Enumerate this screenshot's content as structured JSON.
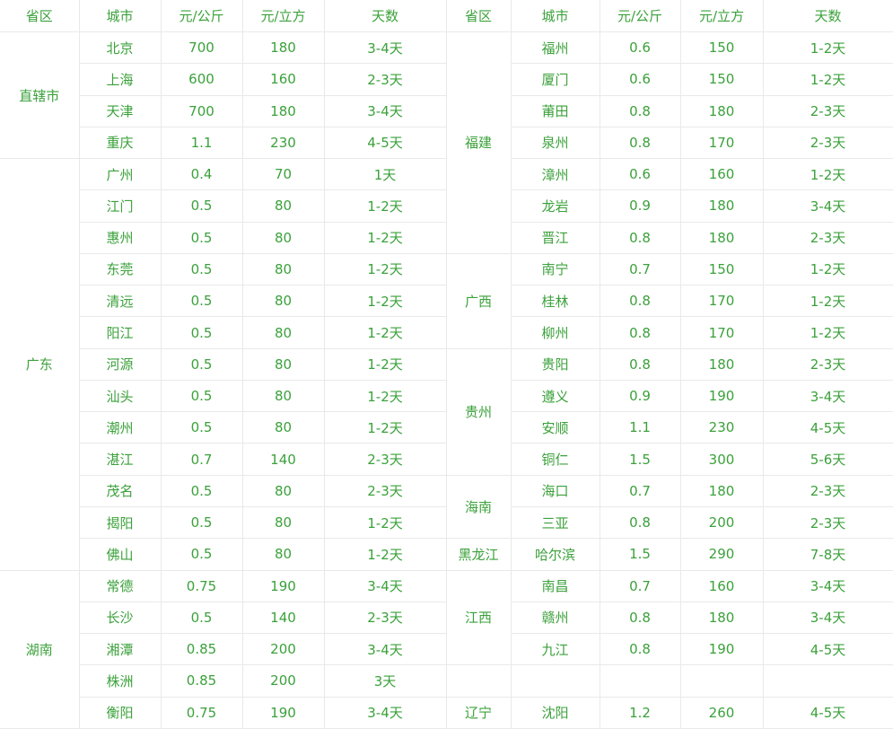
{
  "colors": {
    "text_green": "#3ba13b",
    "border": "#e9e9e9",
    "background": "#ffffff"
  },
  "chart_data": {
    "type": "table",
    "columns": [
      "省区",
      "城市",
      "元/公斤",
      "元/立方",
      "天数",
      "省区",
      "城市",
      "元/公斤",
      "元/立方",
      "天数"
    ],
    "left_groups": [
      {
        "province": "直辖市",
        "rows": [
          [
            "北京",
            "700",
            "180",
            "3-4天"
          ],
          [
            "上海",
            "600",
            "160",
            "2-3天"
          ],
          [
            "天津",
            "700",
            "180",
            "3-4天"
          ],
          [
            "重庆",
            "1.1",
            "230",
            "4-5天"
          ]
        ]
      },
      {
        "province": "广东",
        "rows": [
          [
            "广州",
            "0.4",
            "70",
            "1天"
          ],
          [
            "江门",
            "0.5",
            "80",
            "1-2天"
          ],
          [
            "惠州",
            "0.5",
            "80",
            "1-2天"
          ],
          [
            "东莞",
            "0.5",
            "80",
            "1-2天"
          ],
          [
            "清远",
            "0.5",
            "80",
            "1-2天"
          ],
          [
            "阳江",
            "0.5",
            "80",
            "1-2天"
          ],
          [
            "河源",
            "0.5",
            "80",
            "1-2天"
          ],
          [
            "汕头",
            "0.5",
            "80",
            "1-2天"
          ],
          [
            "潮州",
            "0.5",
            "80",
            "1-2天"
          ],
          [
            "湛江",
            "0.7",
            "140",
            "2-3天"
          ],
          [
            "茂名",
            "0.5",
            "80",
            "2-3天"
          ],
          [
            "揭阳",
            "0.5",
            "80",
            "1-2天"
          ],
          [
            "佛山",
            "0.5",
            "80",
            "1-2天"
          ]
        ]
      },
      {
        "province": "湖南",
        "rows": [
          [
            "常德",
            "0.75",
            "190",
            "3-4天"
          ],
          [
            "长沙",
            "0.5",
            "140",
            "2-3天"
          ],
          [
            "湘潭",
            "0.85",
            "200",
            "3-4天"
          ],
          [
            "株洲",
            "0.85",
            "200",
            "3天"
          ],
          [
            "衡阳",
            "0.75",
            "190",
            "3-4天"
          ]
        ]
      }
    ],
    "right_groups": [
      {
        "province": "福建",
        "rows": [
          [
            "福州",
            "0.6",
            "150",
            "1-2天"
          ],
          [
            "厦门",
            "0.6",
            "150",
            "1-2天"
          ],
          [
            "莆田",
            "0.8",
            "180",
            "2-3天"
          ],
          [
            "泉州",
            "0.8",
            "170",
            "2-3天"
          ],
          [
            "漳州",
            "0.6",
            "160",
            "1-2天"
          ],
          [
            "龙岩",
            "0.9",
            "180",
            "3-4天"
          ],
          [
            "晋江",
            "0.8",
            "180",
            "2-3天"
          ]
        ]
      },
      {
        "province": "广西",
        "rows": [
          [
            "南宁",
            "0.7",
            "150",
            "1-2天"
          ],
          [
            "桂林",
            "0.8",
            "170",
            "1-2天"
          ],
          [
            "柳州",
            "0.8",
            "170",
            "1-2天"
          ]
        ]
      },
      {
        "province": "贵州",
        "rows": [
          [
            "贵阳",
            "0.8",
            "180",
            "2-3天"
          ],
          [
            "遵义",
            "0.9",
            "190",
            "3-4天"
          ],
          [
            "安顺",
            "1.1",
            "230",
            "4-5天"
          ],
          [
            "铜仁",
            "1.5",
            "300",
            "5-6天"
          ]
        ]
      },
      {
        "province": "海南",
        "rows": [
          [
            "海口",
            "0.7",
            "180",
            "2-3天"
          ],
          [
            "三亚",
            "0.8",
            "200",
            "2-3天"
          ]
        ]
      },
      {
        "province": "黑龙江",
        "rows": [
          [
            "哈尔滨",
            "1.5",
            "290",
            "7-8天"
          ]
        ]
      },
      {
        "province": "江西",
        "rows": [
          [
            "南昌",
            "0.7",
            "160",
            "3-4天"
          ],
          [
            "赣州",
            "0.8",
            "180",
            "3-4天"
          ],
          [
            "九江",
            "0.8",
            "190",
            "4-5天"
          ]
        ]
      },
      {
        "province": "",
        "rows": [
          [
            "",
            "",
            "",
            ""
          ]
        ]
      },
      {
        "province": "辽宁",
        "rows": [
          [
            "沈阳",
            "1.2",
            "260",
            "4-5天"
          ]
        ]
      }
    ]
  }
}
